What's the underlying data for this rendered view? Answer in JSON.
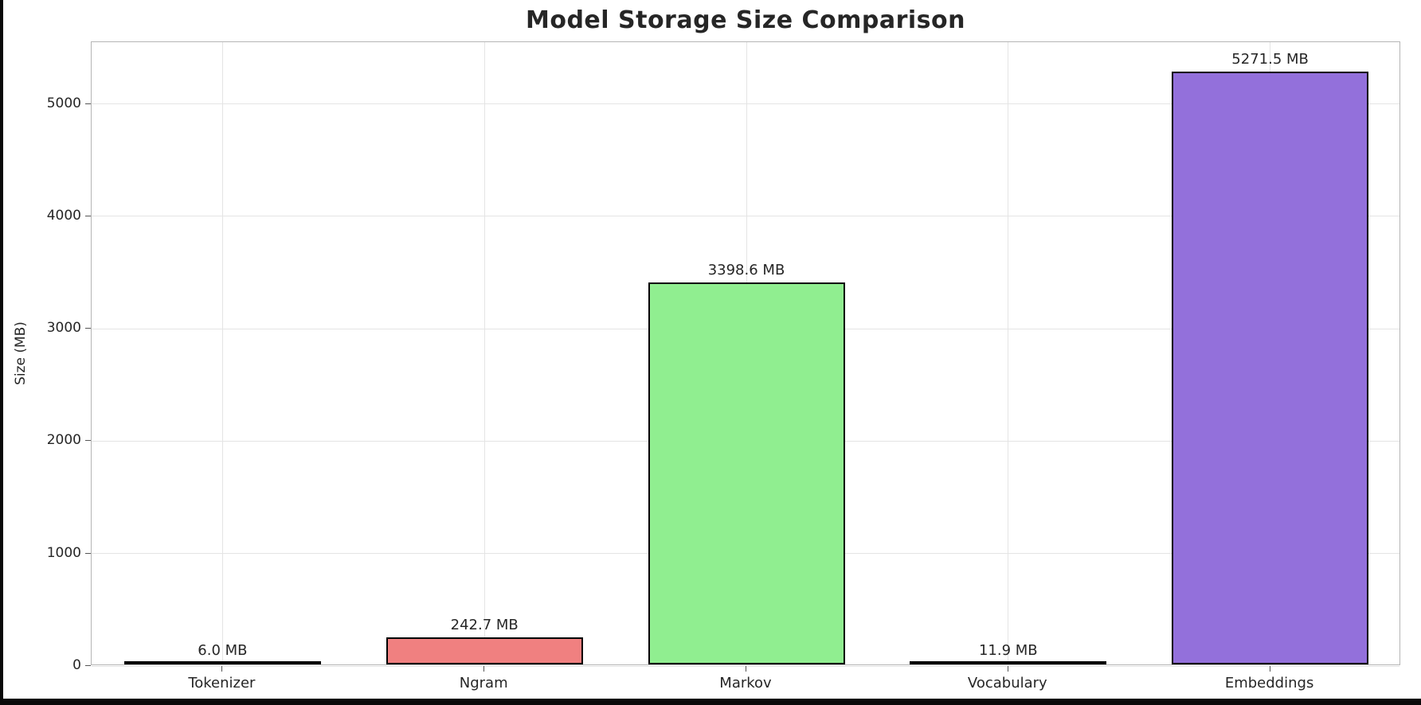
{
  "page": {
    "title": "Model Storage Size Comparison"
  },
  "chart_data": {
    "type": "bar",
    "title": "Model Storage Size Comparison",
    "xlabel": "",
    "ylabel": "Size (MB)",
    "categories": [
      "Tokenizer",
      "Ngram",
      "Markov",
      "Vocabulary",
      "Embeddings"
    ],
    "values": [
      6.0,
      242.7,
      3398.6,
      11.9,
      5271.5
    ],
    "value_labels": [
      "6.0 MB",
      "242.7 MB",
      "3398.6 MB",
      "11.9 MB",
      "5271.5 MB"
    ],
    "bar_colors": [
      "#87ceeb",
      "#f08080",
      "#90ee90",
      "#ffd700",
      "#9370db"
    ],
    "bar_edge_color": "#000000",
    "yticks": [
      0,
      1000,
      2000,
      3000,
      4000,
      5000
    ],
    "ylim": [
      0,
      5550
    ],
    "grid": true,
    "grid_color": "#e4e4e4",
    "legend_position": "none",
    "background_color": "#ffffff"
  }
}
